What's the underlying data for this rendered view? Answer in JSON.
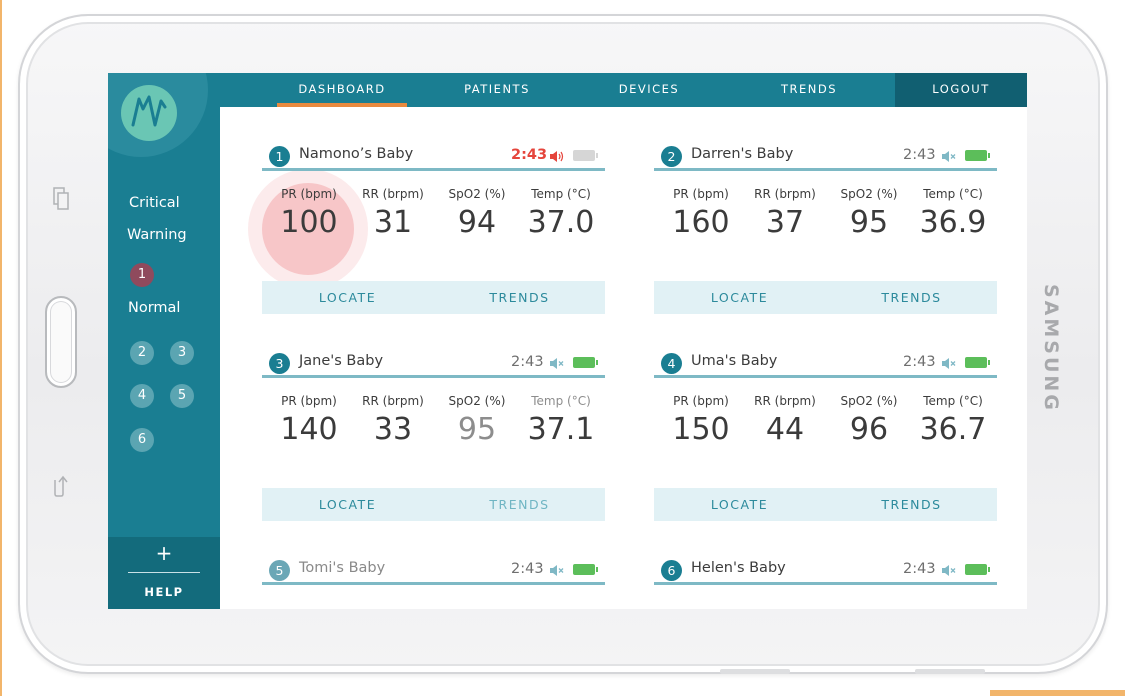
{
  "device": {
    "brand": "SAMSUNG"
  },
  "sidebar": {
    "logo_icon": "wave-n-logo",
    "critical_label": "Critical",
    "warning_label": "Warning",
    "warning_ids": [
      "1"
    ],
    "normal_label": "Normal",
    "normal_ids": [
      "2",
      "3",
      "4",
      "5",
      "6"
    ],
    "help_plus": "+",
    "help_label": "HELP"
  },
  "nav": {
    "dashboard": "DASHBOARD",
    "patients": "PATIENTS",
    "devices": "DEVICES",
    "trends": "TRENDS",
    "logout": "LOGOUT",
    "active": "DASHBOARD",
    "active_color": "#e88a3f"
  },
  "cards": [
    {
      "id": "1",
      "name": "Namono’s Baby",
      "time": "2:43",
      "status": "alert",
      "sound": "on",
      "battery": "low",
      "metrics": [
        {
          "label": "PR (bpm)",
          "value": "100"
        },
        {
          "label": "RR (brpm)",
          "value": "31"
        },
        {
          "label": "SpO2 (%)",
          "value": "94"
        },
        {
          "label": "Temp (°C)",
          "value": "37.0"
        }
      ],
      "locate": "LOCATE",
      "trends": "TRENDS"
    },
    {
      "id": "2",
      "name": "Darren's Baby",
      "time": "2:43",
      "status": "normal",
      "sound": "muted",
      "battery": "full",
      "metrics": [
        {
          "label": "PR (bpm)",
          "value": "160"
        },
        {
          "label": "RR (brpm)",
          "value": "37"
        },
        {
          "label": "SpO2 (%)",
          "value": "95"
        },
        {
          "label": "Temp (°C)",
          "value": "36.9"
        }
      ],
      "locate": "LOCATE",
      "trends": "TRENDS"
    },
    {
      "id": "3",
      "name": "Jane's Baby",
      "time": "2:43",
      "status": "normal",
      "sound": "muted",
      "battery": "full",
      "metrics": [
        {
          "label": "PR (bpm)",
          "value": "140"
        },
        {
          "label": "RR (brpm)",
          "value": "33"
        },
        {
          "label": "SpO2 (%)",
          "value": "95"
        },
        {
          "label": "Temp (°C)",
          "value": "37.1"
        }
      ],
      "locate": "LOCATE",
      "trends": "TRENDS"
    },
    {
      "id": "4",
      "name": "Uma's Baby",
      "time": "2:43",
      "status": "normal",
      "sound": "muted",
      "battery": "full",
      "metrics": [
        {
          "label": "PR (bpm)",
          "value": "150"
        },
        {
          "label": "RR (brpm)",
          "value": "44"
        },
        {
          "label": "SpO2 (%)",
          "value": "96"
        },
        {
          "label": "Temp (°C)",
          "value": "36.7"
        }
      ],
      "locate": "LOCATE",
      "trends": "TRENDS"
    },
    {
      "id": "5",
      "name": "Tomi's Baby",
      "time": "2:43",
      "status": "normal",
      "sound": "muted",
      "battery": "full"
    },
    {
      "id": "6",
      "name": "Helen's Baby",
      "time": "2:43",
      "status": "normal",
      "sound": "muted",
      "battery": "full"
    }
  ],
  "colors": {
    "teal": "#1a7e92",
    "alert_red": "#e5453c",
    "battery_green": "#5cbe5a",
    "action_bg": "#e1f1f5"
  }
}
